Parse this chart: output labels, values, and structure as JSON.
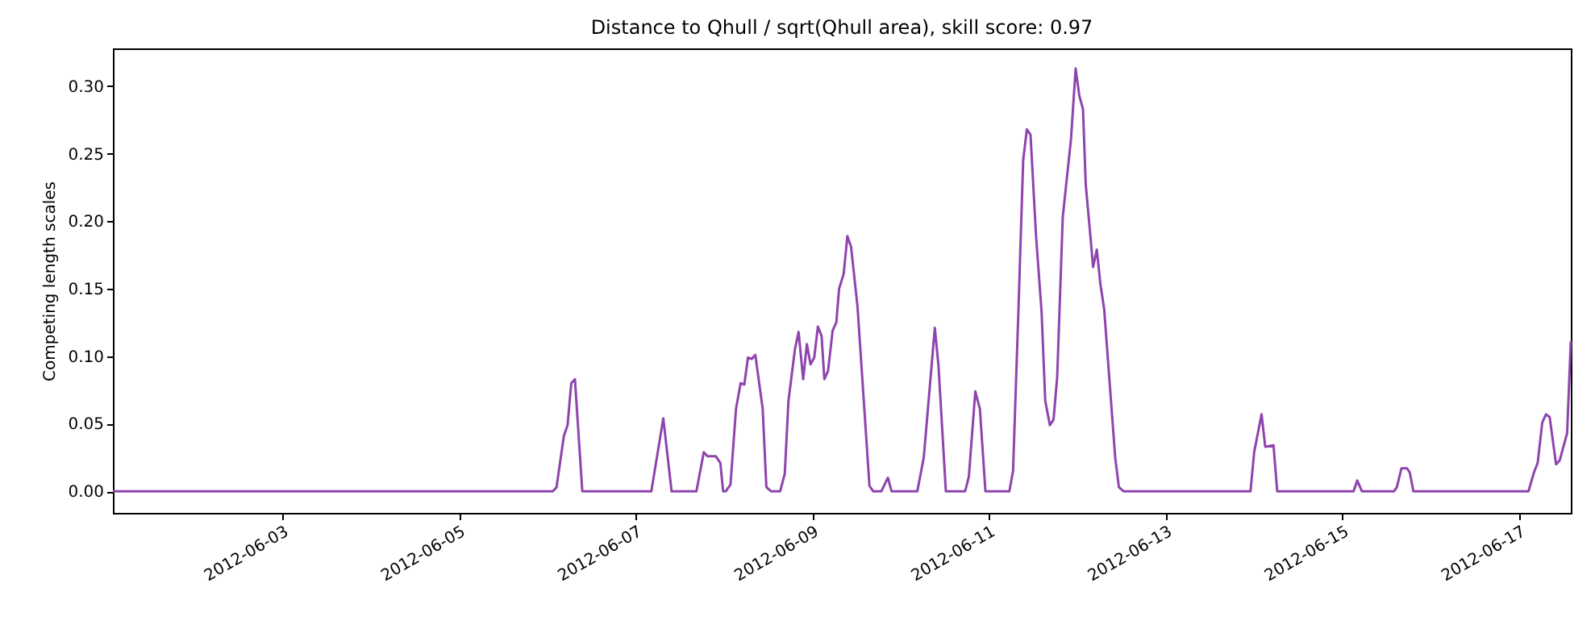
{
  "chart_data": {
    "type": "line",
    "title": "Distance to Qhull / sqrt(Qhull area), skill score: 0.97",
    "ylabel": "Competing length scales",
    "x": [
      "2012-06-01T02:00",
      "2012-06-06T01:30",
      "2012-06-06T02:30",
      "2012-06-06T04:30",
      "2012-06-06T05:30",
      "2012-06-06T06:30",
      "2012-06-06T07:30",
      "2012-06-06T09:30",
      "2012-06-07T04:15",
      "2012-06-07T07:30",
      "2012-06-07T09:45",
      "2012-06-07T16:30",
      "2012-06-07T18:30",
      "2012-06-07T19:30",
      "2012-06-07T21:45",
      "2012-06-07T23:00",
      "2012-06-07T23:45",
      "2012-06-08T00:30",
      "2012-06-08T01:45",
      "2012-06-08T03:15",
      "2012-06-08T04:30",
      "2012-06-08T05:30",
      "2012-06-08T06:30",
      "2012-06-08T07:30",
      "2012-06-08T08:30",
      "2012-06-08T10:30",
      "2012-06-08T11:30",
      "2012-06-08T12:45",
      "2012-06-08T15:15",
      "2012-06-08T16:30",
      "2012-06-08T17:30",
      "2012-06-08T19:15",
      "2012-06-08T20:15",
      "2012-06-08T21:30",
      "2012-06-08T22:30",
      "2012-06-08T23:30",
      "2012-06-09T00:30",
      "2012-06-09T01:30",
      "2012-06-09T02:30",
      "2012-06-09T03:15",
      "2012-06-09T04:15",
      "2012-06-09T05:30",
      "2012-06-09T06:30",
      "2012-06-09T07:15",
      "2012-06-09T08:30",
      "2012-06-09T09:30",
      "2012-06-09T10:30",
      "2012-06-09T12:15",
      "2012-06-09T15:30",
      "2012-06-09T16:30",
      "2012-06-09T18:45",
      "2012-06-09T20:30",
      "2012-06-09T21:30",
      "2012-06-10T04:30",
      "2012-06-10T06:15",
      "2012-06-10T09:15",
      "2012-06-10T10:15",
      "2012-06-10T12:15",
      "2012-06-10T17:30",
      "2012-06-10T18:30",
      "2012-06-10T20:15",
      "2012-06-10T21:30",
      "2012-06-10T23:00",
      "2012-06-11T05:30",
      "2012-06-11T06:30",
      "2012-06-11T08:00",
      "2012-06-11T09:15",
      "2012-06-11T10:15",
      "2012-06-11T11:15",
      "2012-06-11T12:45",
      "2012-06-11T14:15",
      "2012-06-11T15:15",
      "2012-06-11T16:30",
      "2012-06-11T17:30",
      "2012-06-11T18:30",
      "2012-06-11T20:00",
      "2012-06-11T22:15",
      "2012-06-11T23:30",
      "2012-06-12T00:30",
      "2012-06-12T01:30",
      "2012-06-12T02:15",
      "2012-06-12T03:15",
      "2012-06-12T04:15",
      "2012-06-12T05:15",
      "2012-06-12T06:15",
      "2012-06-12T07:15",
      "2012-06-12T10:15",
      "2012-06-12T11:15",
      "2012-06-12T12:30",
      "2012-06-13T23:00",
      "2012-06-14T00:00",
      "2012-06-14T02:00",
      "2012-06-14T03:00",
      "2012-06-14T05:15",
      "2012-06-14T06:15",
      "2012-06-15T03:00",
      "2012-06-15T04:00",
      "2012-06-15T05:15",
      "2012-06-15T14:00",
      "2012-06-15T14:45",
      "2012-06-15T16:00",
      "2012-06-15T17:30",
      "2012-06-15T18:15",
      "2012-06-15T19:15",
      "2012-06-17T02:30",
      "2012-06-17T04:00",
      "2012-06-17T05:00",
      "2012-06-17T06:15",
      "2012-06-17T07:15",
      "2012-06-17T08:15",
      "2012-06-17T10:00",
      "2012-06-17T11:00",
      "2012-06-17T13:00",
      "2012-06-17T14:00"
    ],
    "series": [
      {
        "color": "#8e44ad",
        "values": [
          0,
          0,
          0.003,
          0.041,
          0.049,
          0.08,
          0.083,
          0,
          0,
          0.054,
          0,
          0,
          0.029,
          0.026,
          0.026,
          0.021,
          0,
          0,
          0.005,
          0.061,
          0.08,
          0.079,
          0.099,
          0.098,
          0.101,
          0.061,
          0.003,
          0,
          0,
          0.013,
          0.067,
          0.105,
          0.118,
          0.083,
          0.109,
          0.094,
          0.099,
          0.122,
          0.115,
          0.083,
          0.089,
          0.119,
          0.125,
          0.15,
          0.161,
          0.189,
          0.181,
          0.137,
          0.004,
          0,
          0,
          0.01,
          0,
          0,
          0.025,
          0.121,
          0.093,
          0,
          0,
          0.011,
          0.074,
          0.061,
          0,
          0,
          0.015,
          0.137,
          0.245,
          0.268,
          0.264,
          0.189,
          0.133,
          0.067,
          0.049,
          0.053,
          0.085,
          0.203,
          0.261,
          0.313,
          0.293,
          0.283,
          0.227,
          0.197,
          0.166,
          0.179,
          0.153,
          0.135,
          0.025,
          0.003,
          0,
          0,
          0.029,
          0.057,
          0.033,
          0.034,
          0,
          0,
          0.008,
          0,
          0,
          0.003,
          0.017,
          0.017,
          0.014,
          0,
          0,
          0.014,
          0.021,
          0.051,
          0.057,
          0.055,
          0.02,
          0.023,
          0.043,
          0.111
        ]
      }
    ],
    "xlim": [
      "2012-06-01T02:00",
      "2012-06-17T14:00"
    ],
    "xticks": [
      "2012-06-03",
      "2012-06-05",
      "2012-06-07",
      "2012-06-09",
      "2012-06-11",
      "2012-06-13",
      "2012-06-15",
      "2012-06-17"
    ],
    "ylim": [
      -0.016,
      0.328
    ],
    "yticks": [
      {
        "value": 0,
        "label": "0.00"
      },
      {
        "value": 0.05,
        "label": "0.05"
      },
      {
        "value": 0.1,
        "label": "0.10"
      },
      {
        "value": 0.15,
        "label": "0.15"
      },
      {
        "value": 0.2,
        "label": "0.20"
      },
      {
        "value": 0.25,
        "label": "0.25"
      },
      {
        "value": 0.3,
        "label": "0.30"
      }
    ],
    "grid": false
  }
}
